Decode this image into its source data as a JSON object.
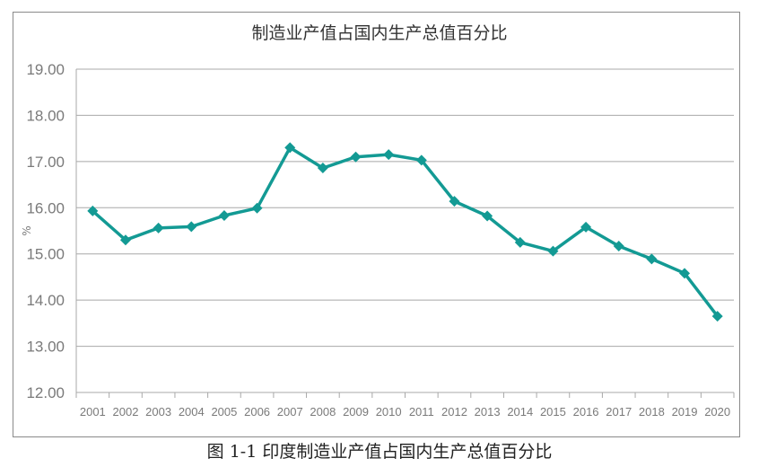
{
  "chart_data": {
    "type": "line",
    "title": "制造业产值占国内生产总值百分比",
    "ylabel": "%",
    "xlabel": "",
    "ylim": [
      12,
      19
    ],
    "yticks": [
      "12.00",
      "13.00",
      "14.00",
      "15.00",
      "16.00",
      "17.00",
      "18.00",
      "19.00"
    ],
    "categories": [
      "2001",
      "2002",
      "2003",
      "2004",
      "2005",
      "2006",
      "2007",
      "2008",
      "2009",
      "2010",
      "2011",
      "2012",
      "2013",
      "2014",
      "2015",
      "2016",
      "2017",
      "2018",
      "2019",
      "2020"
    ],
    "series": [
      {
        "values": [
          15.93,
          15.3,
          15.56,
          15.59,
          15.83,
          15.99,
          17.3,
          16.86,
          17.1,
          17.15,
          17.03,
          16.14,
          15.82,
          15.25,
          15.06,
          15.58,
          15.17,
          14.89,
          14.58,
          13.65
        ],
        "color": "#139a94"
      }
    ],
    "grid": true,
    "legend": "none"
  },
  "caption": "图 1-1 印度制造业产值占国内生产总值百分比"
}
